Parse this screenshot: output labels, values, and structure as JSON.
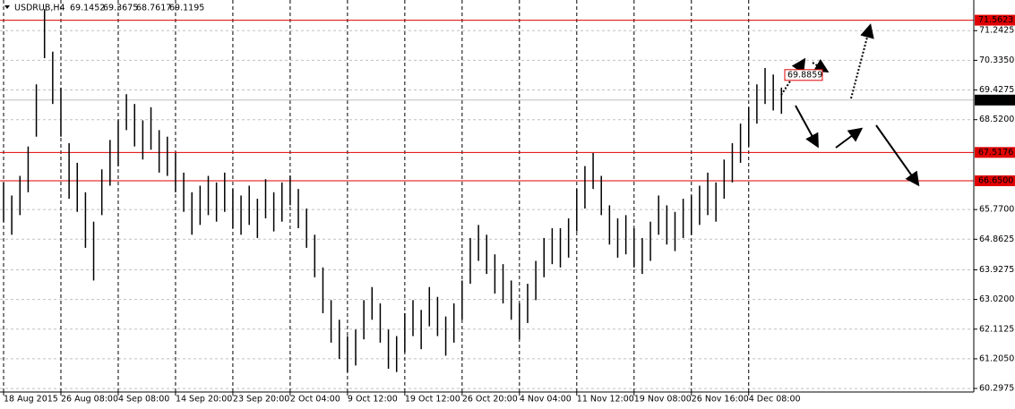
{
  "chart_data": {
    "type": "ohlc",
    "symbol": "USDRUB,H4",
    "open": 69.1452,
    "high_now": 69.3675,
    "low_now": 68.7617,
    "close": 69.1195,
    "categories": [
      "18 Aug 2015",
      null,
      null,
      null,
      null,
      null,
      null,
      "26 Aug 08:00",
      null,
      null,
      null,
      null,
      null,
      null,
      "4 Sep 08:00",
      null,
      null,
      null,
      null,
      null,
      null,
      "14 Sep 20:00",
      null,
      null,
      null,
      null,
      null,
      null,
      "23 Sep 20:00",
      null,
      null,
      null,
      null,
      null,
      null,
      "2 Oct 04:00",
      null,
      null,
      null,
      null,
      null,
      null,
      "9 Oct 12:00",
      null,
      null,
      null,
      null,
      null,
      null,
      "19 Oct 12:00",
      null,
      null,
      null,
      null,
      null,
      null,
      "26 Oct 20:00",
      null,
      null,
      null,
      null,
      null,
      null,
      "4 Nov 04:00",
      null,
      null,
      null,
      null,
      null,
      null,
      "11 Nov 12:00",
      null,
      null,
      null,
      null,
      null,
      null,
      "19 Nov 08:00",
      null,
      null,
      null,
      null,
      null,
      null,
      "26 Nov 16:00",
      null,
      null,
      null,
      null,
      null,
      null,
      "4 Dec 08:00",
      null,
      null,
      null,
      null
    ],
    "high": [
      66.6,
      66.2,
      66.8,
      67.7,
      69.6,
      71.9,
      70.6,
      69.5,
      67.8,
      67.2,
      66.3,
      65.4,
      67.0,
      67.9,
      68.5,
      69.3,
      69.0,
      68.5,
      68.9,
      68.2,
      68.0,
      67.5,
      66.9,
      66.3,
      66.5,
      66.8,
      66.6,
      66.9,
      66.4,
      66.2,
      66.5,
      66.1,
      66.7,
      66.3,
      66.6,
      66.8,
      66.4,
      65.8,
      65.0,
      64.0,
      63.0,
      62.4,
      61.9,
      62.1,
      63.0,
      63.4,
      62.9,
      62.1,
      61.9,
      62.6,
      63.0,
      62.7,
      63.4,
      63.1,
      62.5,
      62.9,
      63.6,
      64.9,
      65.3,
      65.0,
      64.4,
      64.1,
      63.6,
      62.9,
      63.5,
      64.2,
      64.9,
      65.2,
      65.2,
      65.5,
      66.4,
      67.1,
      67.5,
      66.8,
      65.9,
      65.5,
      65.6,
      65.2,
      64.9,
      65.4,
      66.2,
      65.9,
      65.7,
      66.1,
      66.2,
      66.5,
      66.9,
      66.6,
      67.3,
      67.8,
      68.4,
      68.9,
      69.6,
      70.1,
      69.9,
      69.5
    ],
    "low": [
      65.4,
      65.0,
      65.6,
      66.3,
      68.0,
      70.4,
      69.0,
      68.0,
      66.1,
      65.7,
      64.6,
      63.6,
      65.6,
      66.5,
      67.1,
      68.2,
      67.7,
      67.3,
      67.6,
      66.9,
      66.8,
      66.3,
      65.7,
      65.0,
      65.3,
      65.6,
      65.4,
      65.7,
      65.2,
      65.0,
      65.3,
      64.9,
      65.5,
      65.1,
      65.4,
      65.9,
      65.2,
      64.6,
      63.7,
      62.6,
      61.7,
      61.2,
      60.8,
      61.0,
      61.8,
      62.4,
      61.7,
      60.9,
      60.8,
      61.4,
      61.9,
      61.5,
      62.2,
      61.9,
      61.3,
      61.7,
      62.4,
      63.5,
      64.2,
      63.8,
      63.2,
      62.9,
      62.4,
      61.8,
      62.3,
      63.0,
      63.7,
      64.1,
      64.0,
      64.3,
      65.1,
      65.8,
      66.4,
      65.6,
      64.7,
      64.3,
      64.4,
      64.0,
      63.8,
      64.2,
      65.0,
      64.7,
      64.5,
      64.9,
      65.0,
      65.3,
      65.6,
      65.4,
      66.1,
      66.6,
      67.2,
      67.7,
      68.4,
      69.0,
      68.8,
      68.7
    ],
    "ylim": [
      60.19,
      72.18
    ],
    "yticks": [
      71.2425,
      {
        "value": 70.335,
        "label": "70.3350"
      },
      69.4275,
      {
        "value": 68.52,
        "label": "68.5200"
      },
      {
        "value": 65.77,
        "label": "65.7700"
      },
      64.8625,
      63.9275,
      {
        "value": 63.02,
        "label": "63.0200"
      },
      62.1125,
      {
        "value": 61.205,
        "label": "61.2050"
      },
      60.2975
    ],
    "levels": [
      {
        "value": 71.5623,
        "label": "71.5623"
      },
      {
        "value": 67.5176,
        "label": "67.5176"
      },
      {
        "value": 66.65,
        "label": "66.6500"
      }
    ],
    "level_color": "#e00000",
    "bar_color": "#000000",
    "annotation": 69.8859,
    "grid": true
  }
}
